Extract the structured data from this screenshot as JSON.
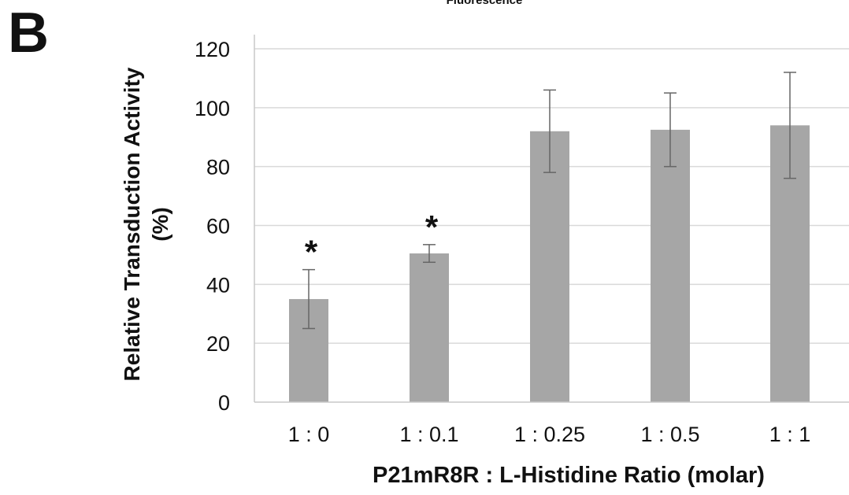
{
  "figure": {
    "panel_letter": "B",
    "title": "Fluorescence"
  },
  "chart_data": {
    "type": "bar",
    "title": "Fluorescence",
    "xlabel": "P21mR8R : L-Histidine  Ratio (molar)",
    "ylabel": "Relative Transduction Activity (%)",
    "ylim": [
      0,
      120
    ],
    "yticks": [
      0,
      20,
      40,
      60,
      80,
      100,
      120
    ],
    "grid": true,
    "categories": [
      "1 : 0",
      "1 : 0.1",
      "1 : 0.25",
      "1 : 0.5",
      "1 : 1"
    ],
    "values": [
      35,
      50.5,
      92,
      92.5,
      94
    ],
    "error": [
      10,
      3,
      14,
      12.5,
      18
    ],
    "annotations": [
      "*",
      "*",
      "",
      "",
      ""
    ],
    "bar_color": "#a6a6a6",
    "grid_color": "#d9d9d9"
  }
}
